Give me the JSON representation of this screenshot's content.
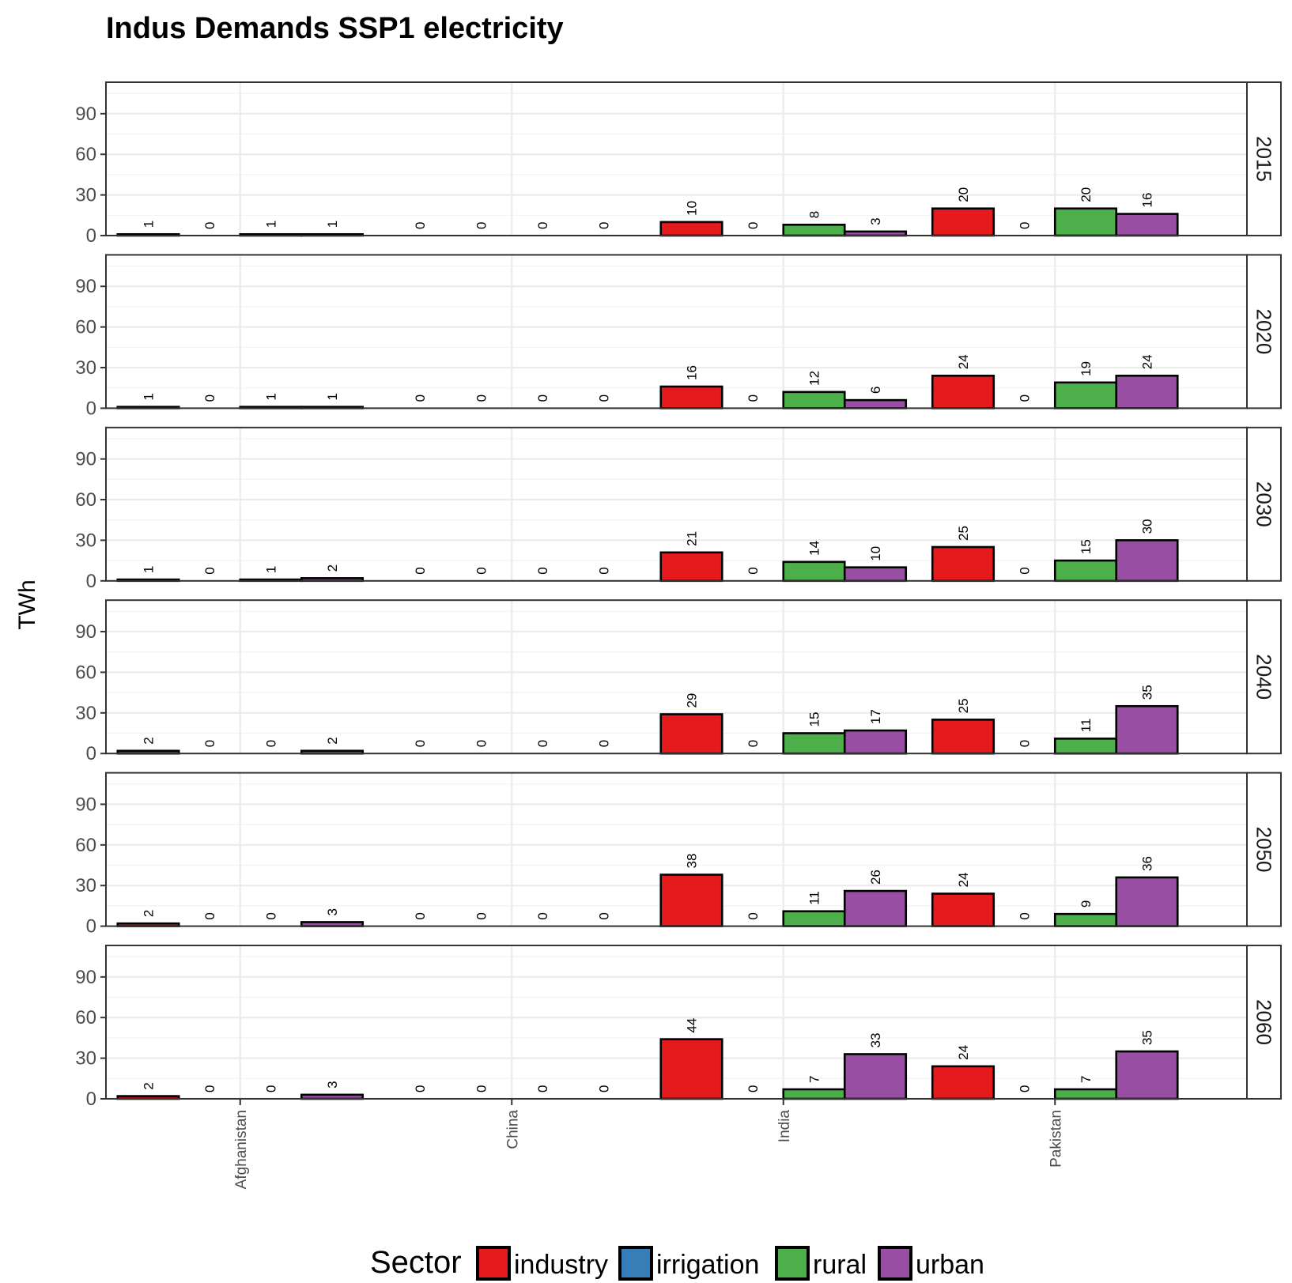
{
  "chart_data": {
    "type": "bar",
    "title": "Indus Demands SSP1 electricity",
    "ylabel": "TWh",
    "xlabel": "",
    "ylim": [
      0,
      115
    ],
    "y_ticks": [
      "0",
      "30",
      "60",
      "90"
    ],
    "categories": [
      "Afghanistan",
      "China",
      "India",
      "Pakistan"
    ],
    "facets": [
      "2015",
      "2020",
      "2030",
      "2040",
      "2050",
      "2060"
    ],
    "legend": {
      "title": "Sector",
      "position": "bottom"
    },
    "grid": true,
    "series": [
      {
        "name": "industry",
        "color": "#e41a1c",
        "values": [
          [
            1,
            0,
            10,
            20
          ],
          [
            1,
            0,
            16,
            24
          ],
          [
            1,
            0,
            21,
            25
          ],
          [
            2,
            0,
            29,
            25
          ],
          [
            2,
            0,
            38,
            24
          ],
          [
            2,
            0,
            44,
            24
          ]
        ]
      },
      {
        "name": "irrigation",
        "color": "#377eb8",
        "values": [
          [
            0,
            0,
            0,
            0
          ],
          [
            0,
            0,
            0,
            0
          ],
          [
            0,
            0,
            0,
            0
          ],
          [
            0,
            0,
            0,
            0
          ],
          [
            0,
            0,
            0,
            0
          ],
          [
            0,
            0,
            0,
            0
          ]
        ]
      },
      {
        "name": "rural",
        "color": "#4daf4a",
        "values": [
          [
            1,
            0,
            8,
            20
          ],
          [
            1,
            0,
            12,
            19
          ],
          [
            1,
            0,
            14,
            15
          ],
          [
            0,
            0,
            15,
            11
          ],
          [
            0,
            0,
            11,
            9
          ],
          [
            0,
            0,
            7,
            7
          ]
        ]
      },
      {
        "name": "urban",
        "color": "#984ea3",
        "values": [
          [
            1,
            0,
            3,
            16
          ],
          [
            1,
            0,
            6,
            24
          ],
          [
            2,
            0,
            10,
            30
          ],
          [
            2,
            0,
            17,
            35
          ],
          [
            3,
            0,
            26,
            36
          ],
          [
            3,
            0,
            33,
            35
          ]
        ]
      }
    ]
  }
}
